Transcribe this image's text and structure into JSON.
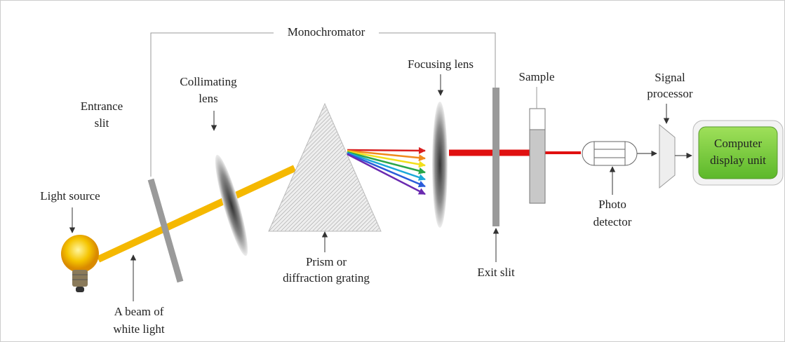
{
  "labels": {
    "monochromator": [
      "Monochromator"
    ],
    "entrance_slit": [
      "Entrance",
      "slit"
    ],
    "collimating_lens": [
      "Collimating",
      "lens"
    ],
    "light_source": [
      "Light source"
    ],
    "white_light_beam": [
      "A beam of",
      "white light"
    ],
    "prism": [
      "Prism or",
      "diffraction grating"
    ],
    "focusing_lens": [
      "Focusing lens"
    ],
    "exit_slit": [
      "Exit slit"
    ],
    "sample": [
      "Sample"
    ],
    "signal_processor": [
      "Signal",
      "processor"
    ],
    "photo_detector": [
      "Photo",
      "detector"
    ],
    "computer_display": [
      "Computer",
      "display unit"
    ]
  }
}
